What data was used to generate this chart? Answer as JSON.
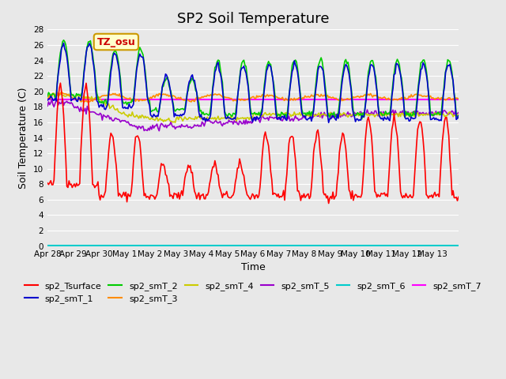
{
  "title": "SP2 Soil Temperature",
  "ylabel": "Soil Temperature (C)",
  "xlabel": "Time",
  "plot_bg_color": "#e8e8e8",
  "ylim": [
    0,
    28
  ],
  "yticks": [
    0,
    2,
    4,
    6,
    8,
    10,
    12,
    14,
    16,
    18,
    20,
    22,
    24,
    26,
    28
  ],
  "xtick_labels": [
    "Apr 28",
    "Apr 29",
    "Apr 30",
    "May 1",
    "May 2",
    "May 3",
    "May 4",
    "May 5",
    "May 6",
    "May 7",
    "May 8",
    "May 9",
    "May 10",
    "May 11",
    "May 12",
    "May 13"
  ],
  "n_days": 16,
  "colors": {
    "sp2_Tsurface": "#ff0000",
    "sp2_smT_1": "#0000cd",
    "sp2_smT_2": "#00cc00",
    "sp2_smT_3": "#ff8c00",
    "sp2_smT_4": "#cccc00",
    "sp2_smT_5": "#9900cc",
    "sp2_smT_6": "#00cccc",
    "sp2_smT_7": "#ff00ff"
  },
  "watermark_text": "TZ_osu",
  "watermark_color": "#cc0000",
  "watermark_bg": "#ffffcc",
  "watermark_border": "#cc9900"
}
